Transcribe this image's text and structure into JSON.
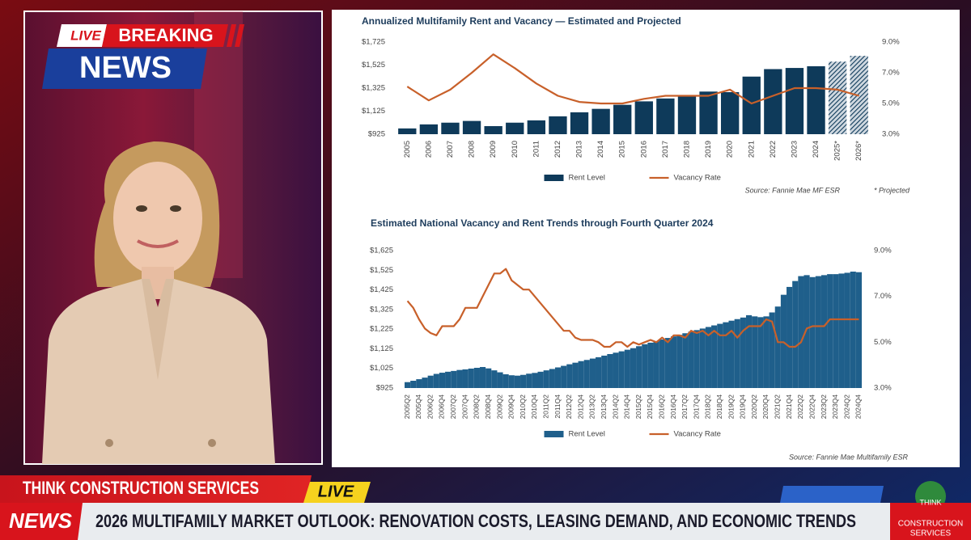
{
  "broadcast": {
    "badge": {
      "live": "LIVE",
      "breaking": "BREAKING",
      "news": "NEWS"
    },
    "ticker": {
      "channel": "THINK CONSTRUCTION SERVICES",
      "live": "LIVE",
      "label": "NEWS",
      "headline": "2026 MULTIFAMILY MARKET OUTLOOK: RENOVATION COSTS, LEASING DEMAND, AND ECONOMIC TRENDS"
    },
    "logo": {
      "think": "THINK",
      "line1": "CONSTRUCTION",
      "line2": "SERVICES"
    }
  },
  "chart_data": [
    {
      "type": "bar",
      "title": "Annualized Multifamily Rent and Vacancy — Estimated and Projected",
      "categories": [
        "2005",
        "2006",
        "2007",
        "2008",
        "2009",
        "2010",
        "2011",
        "2012",
        "2013",
        "2014",
        "2015",
        "2016",
        "2017",
        "2018",
        "2019",
        "2020",
        "2021",
        "2022",
        "2023",
        "2024",
        "2025*",
        "2026*"
      ],
      "series": [
        {
          "name": "Rent Level",
          "color": "#0e3a5a",
          "values": [
            975,
            1010,
            1025,
            1040,
            995,
            1025,
            1045,
            1080,
            1115,
            1145,
            1180,
            1210,
            1235,
            1260,
            1295,
            1290,
            1425,
            1490,
            1500,
            1515,
            1555,
            1605
          ],
          "hatched": [
            false,
            false,
            false,
            false,
            false,
            false,
            false,
            false,
            false,
            false,
            false,
            false,
            false,
            false,
            false,
            false,
            false,
            false,
            false,
            false,
            true,
            true
          ]
        },
        {
          "name": "Vacancy Rate",
          "color": "#c8602a",
          "axis": "y2",
          "values": [
            6.1,
            5.2,
            5.9,
            7.0,
            8.2,
            7.3,
            6.3,
            5.5,
            5.1,
            5.0,
            5.0,
            5.3,
            5.5,
            5.5,
            5.5,
            5.9,
            5.0,
            5.5,
            6.0,
            6.0,
            5.9,
            5.5
          ]
        }
      ],
      "ylim": [
        925,
        1725
      ],
      "yticks": [
        {
          "value": 925,
          "label": "$925"
        },
        {
          "value": 1125,
          "label": "$1,125"
        },
        {
          "value": 1325,
          "label": "$1,325"
        },
        {
          "value": 1525,
          "label": "$1,525"
        },
        {
          "value": 1725,
          "label": "$1,725"
        }
      ],
      "y2lim": [
        3,
        9
      ],
      "y2ticks": [
        {
          "value": 3,
          "label": "3.0%"
        },
        {
          "value": 5,
          "label": "5.0%"
        },
        {
          "value": 7,
          "label": "7.0%"
        },
        {
          "value": 9,
          "label": "9.0%"
        }
      ],
      "grid": false,
      "legend": "bottom",
      "source": "Source: Fannie Mae MF ESR",
      "note": "* Projected"
    },
    {
      "type": "bar",
      "title": "Estimated National Vacancy and Rent Trends through Fourth Quarter 2024",
      "categories": [
        "2005Q2",
        null,
        "2005Q4",
        null,
        "2006Q2",
        null,
        "2006Q4",
        null,
        "2007Q2",
        null,
        "2007Q4",
        null,
        "2008Q2",
        null,
        "2008Q4",
        null,
        "2009Q2",
        null,
        "2009Q4",
        null,
        "2010Q2",
        null,
        "2010Q4",
        null,
        "2011Q2",
        null,
        "2011Q4",
        null,
        "2012Q2",
        null,
        "2012Q4",
        null,
        "2013Q2",
        null,
        "2013Q4",
        null,
        "2014Q2",
        null,
        "2014Q4",
        null,
        "2015Q2",
        null,
        "2015Q4",
        null,
        "2016Q2",
        null,
        "2016Q4",
        null,
        "2017Q2",
        null,
        "2017Q4",
        null,
        "2018Q2",
        null,
        "2018Q4",
        null,
        "2019Q2",
        null,
        "2019Q4",
        null,
        "2020Q2",
        null,
        "2020Q4",
        null,
        "2021Q2",
        null,
        "2021Q4",
        null,
        "2022Q2",
        null,
        "2022Q4",
        null,
        "2023Q2",
        null,
        "2023Q4",
        null,
        "2024Q2",
        null,
        "2024Q4"
      ],
      "series": [
        {
          "name": "Rent Level",
          "color": "#1f5f8b",
          "values": [
            955,
            962,
            970,
            978,
            988,
            997,
            1003,
            1008,
            1012,
            1017,
            1020,
            1024,
            1028,
            1032,
            1025,
            1015,
            1005,
            995,
            990,
            988,
            992,
            998,
            1002,
            1008,
            1015,
            1022,
            1030,
            1038,
            1046,
            1054,
            1062,
            1068,
            1075,
            1082,
            1090,
            1098,
            1105,
            1112,
            1120,
            1128,
            1138,
            1148,
            1156,
            1164,
            1172,
            1180,
            1188,
            1196,
            1204,
            1212,
            1220,
            1228,
            1236,
            1244,
            1252,
            1260,
            1268,
            1276,
            1284,
            1296,
            1290,
            1286,
            1290,
            1310,
            1340,
            1400,
            1440,
            1470,
            1495,
            1500,
            1490,
            1495,
            1500,
            1505,
            1505,
            1508,
            1512,
            1518,
            1515
          ]
        },
        {
          "name": "Vacancy Rate",
          "color": "#c8602a",
          "axis": "y2",
          "values": [
            6.8,
            6.5,
            6.0,
            5.6,
            5.4,
            5.3,
            5.7,
            5.7,
            5.7,
            6.0,
            6.5,
            6.5,
            6.5,
            7.0,
            7.5,
            8.0,
            8.0,
            8.2,
            7.7,
            7.5,
            7.3,
            7.3,
            7.0,
            6.7,
            6.4,
            6.1,
            5.8,
            5.5,
            5.5,
            5.2,
            5.1,
            5.1,
            5.1,
            5.0,
            4.8,
            4.8,
            5.0,
            5.0,
            4.8,
            5.0,
            4.9,
            5.0,
            5.1,
            5.0,
            5.2,
            5.0,
            5.3,
            5.3,
            5.2,
            5.5,
            5.4,
            5.5,
            5.3,
            5.5,
            5.3,
            5.3,
            5.5,
            5.2,
            5.5,
            5.7,
            5.7,
            5.7,
            6.0,
            5.9,
            5.0,
            5.0,
            4.8,
            4.8,
            5.0,
            5.6,
            5.7,
            5.7,
            5.7,
            6.0,
            6.0,
            6.0,
            6.0,
            6.0,
            6.0
          ]
        }
      ],
      "ylim": [
        925,
        1625
      ],
      "yticks": [
        {
          "value": 925,
          "label": "$925"
        },
        {
          "value": 1025,
          "label": "$1,025"
        },
        {
          "value": 1125,
          "label": "$1,125"
        },
        {
          "value": 1225,
          "label": "$1,225"
        },
        {
          "value": 1325,
          "label": "$1,325"
        },
        {
          "value": 1425,
          "label": "$1,425"
        },
        {
          "value": 1525,
          "label": "$1,525"
        },
        {
          "value": 1625,
          "label": "$1,625"
        }
      ],
      "y2lim": [
        3,
        9
      ],
      "y2ticks": [
        {
          "value": 3,
          "label": "3.0%"
        },
        {
          "value": 5,
          "label": "5.0%"
        },
        {
          "value": 7,
          "label": "7.0%"
        },
        {
          "value": 9,
          "label": "9.0%"
        }
      ],
      "grid": false,
      "legend": "bottom",
      "source": "Source: Fannie Mae Multifamily ESR"
    }
  ]
}
